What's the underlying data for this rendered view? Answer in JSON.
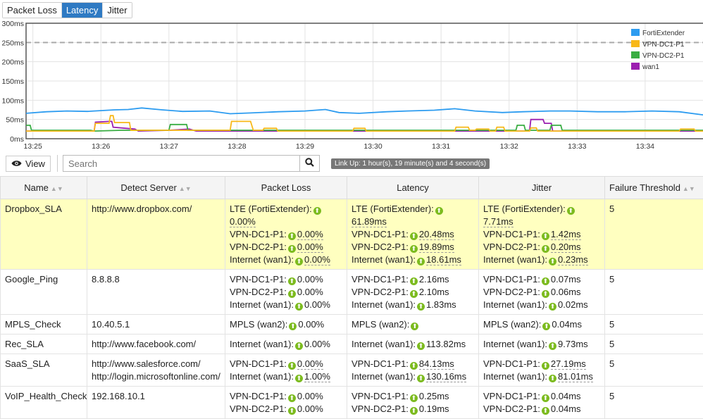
{
  "tabs": [
    {
      "label": "Packet Loss",
      "active": false
    },
    {
      "label": "Latency",
      "active": true
    },
    {
      "label": "Jitter",
      "active": false
    }
  ],
  "chart_data": {
    "type": "line",
    "ylim": [
      0,
      300
    ],
    "yticks": [
      "0ms",
      "50ms",
      "100ms",
      "150ms",
      "200ms",
      "250ms",
      "300ms"
    ],
    "xrange_min": [
      -0.1,
      9.85
    ],
    "xticks": [
      "13:25",
      "13:26",
      "13:27",
      "13:28",
      "13:29",
      "13:30",
      "13:31",
      "13:32",
      "13:33",
      "13:34"
    ],
    "threshold": 250,
    "legend_position": "top-right",
    "series": [
      {
        "name": "FortiExtender",
        "color": "#2d9cf0",
        "points": [
          [
            -0.1,
            66
          ],
          [
            0.2,
            70
          ],
          [
            0.5,
            72
          ],
          [
            0.8,
            71
          ],
          [
            1.2,
            75
          ],
          [
            1.4,
            76
          ],
          [
            1.6,
            80
          ],
          [
            1.9,
            75
          ],
          [
            2.2,
            71
          ],
          [
            2.6,
            72
          ],
          [
            2.9,
            65
          ],
          [
            3.2,
            67
          ],
          [
            3.6,
            70
          ],
          [
            4.0,
            72
          ],
          [
            4.3,
            76
          ],
          [
            4.5,
            68
          ],
          [
            4.8,
            66
          ],
          [
            5.2,
            70
          ],
          [
            5.5,
            72
          ],
          [
            5.9,
            74
          ],
          [
            6.2,
            78
          ],
          [
            6.5,
            72
          ],
          [
            6.9,
            68
          ],
          [
            7.2,
            70
          ],
          [
            7.6,
            72
          ],
          [
            7.9,
            72
          ],
          [
            8.3,
            70
          ],
          [
            8.7,
            70
          ],
          [
            9.1,
            72
          ],
          [
            9.5,
            70
          ],
          [
            9.85,
            62
          ]
        ]
      },
      {
        "name": "VPN-DC1-P1",
        "color": "#f8b818",
        "points": [
          [
            -0.1,
            20
          ],
          [
            0.9,
            20
          ],
          [
            0.92,
            40
          ],
          [
            1.12,
            40
          ],
          [
            1.14,
            60
          ],
          [
            1.18,
            60
          ],
          [
            1.2,
            42
          ],
          [
            1.42,
            42
          ],
          [
            1.44,
            22
          ],
          [
            2.9,
            22
          ],
          [
            2.92,
            45
          ],
          [
            3.2,
            45
          ],
          [
            3.24,
            22
          ],
          [
            3.38,
            22
          ],
          [
            3.4,
            27
          ],
          [
            3.58,
            27
          ],
          [
            3.6,
            20
          ],
          [
            4.7,
            20
          ],
          [
            4.72,
            27
          ],
          [
            4.88,
            27
          ],
          [
            4.9,
            20
          ],
          [
            6.2,
            20
          ],
          [
            6.22,
            30
          ],
          [
            6.4,
            30
          ],
          [
            6.42,
            22
          ],
          [
            6.5,
            22
          ],
          [
            6.52,
            25
          ],
          [
            6.7,
            25
          ],
          [
            6.72,
            20
          ],
          [
            6.8,
            20
          ],
          [
            6.82,
            30
          ],
          [
            6.92,
            30
          ],
          [
            6.94,
            20
          ],
          [
            7.3,
            20
          ],
          [
            7.32,
            28
          ],
          [
            7.4,
            28
          ],
          [
            7.42,
            20
          ],
          [
            9.5,
            20
          ],
          [
            9.52,
            25
          ],
          [
            9.72,
            25
          ],
          [
            9.74,
            20
          ],
          [
            9.85,
            20
          ]
        ]
      },
      {
        "name": "VPN-DC2-P1",
        "color": "#3aad43",
        "points": [
          [
            -0.1,
            35
          ],
          [
            -0.04,
            35
          ],
          [
            -0.02,
            22
          ],
          [
            0.85,
            22
          ],
          [
            0.9,
            20
          ],
          [
            1.3,
            22
          ],
          [
            2.0,
            22
          ],
          [
            2.02,
            37
          ],
          [
            2.26,
            37
          ],
          [
            2.28,
            22
          ],
          [
            7.1,
            22
          ],
          [
            7.12,
            35
          ],
          [
            7.22,
            35
          ],
          [
            7.24,
            22
          ],
          [
            7.6,
            22
          ],
          [
            7.62,
            35
          ],
          [
            7.76,
            35
          ],
          [
            7.78,
            22
          ],
          [
            9.85,
            22
          ]
        ]
      },
      {
        "name": "wan1",
        "color": "#9b1fb0",
        "points": [
          [
            -0.1,
            20
          ],
          [
            0.9,
            20
          ],
          [
            0.92,
            43
          ],
          [
            1.12,
            45
          ],
          [
            1.16,
            45
          ],
          [
            1.18,
            30
          ],
          [
            1.5,
            25
          ],
          [
            1.55,
            20
          ],
          [
            2.0,
            22
          ],
          [
            2.3,
            25
          ],
          [
            2.4,
            20
          ],
          [
            7.3,
            20
          ],
          [
            7.32,
            50
          ],
          [
            7.5,
            50
          ],
          [
            7.52,
            40
          ],
          [
            7.62,
            40
          ],
          [
            7.64,
            20
          ],
          [
            9.85,
            20
          ]
        ]
      }
    ]
  },
  "toolbar": {
    "view_label": "View",
    "search_placeholder": "Search"
  },
  "table": {
    "headers": [
      "Name",
      "Detect Server",
      "Packet Loss",
      "Latency",
      "Jitter",
      "Failure Threshold"
    ],
    "rows": [
      {
        "name": "Dropbox_SLA",
        "server": [
          "http://www.dropbox.com/"
        ],
        "loss": [
          [
            "LTE (FortiExtender):",
            "0.00%"
          ],
          [
            "VPN-DC1-P1:",
            "0.00%"
          ],
          [
            "VPN-DC2-P1:",
            "0.00%"
          ],
          [
            "Internet (wan1):",
            "0.00%"
          ]
        ],
        "latency": [
          [
            "LTE (FortiExtender):",
            "61.89ms"
          ],
          [
            "VPN-DC1-P1:",
            "20.48ms"
          ],
          [
            "VPN-DC2-P1:",
            "19.89ms"
          ],
          [
            "Internet (wan1):",
            "18.61ms"
          ]
        ],
        "jitter": [
          [
            "LTE (FortiExtender):",
            "7.71ms"
          ],
          [
            "VPN-DC1-P1:",
            "1.42ms"
          ],
          [
            "VPN-DC2-P1:",
            "0.20ms"
          ],
          [
            "Internet (wan1):",
            "0.23ms"
          ]
        ],
        "threshold": "5",
        "hl": true,
        "u": true
      },
      {
        "name": "Google_Ping",
        "server": [
          "8.8.8.8"
        ],
        "loss": [
          [
            "VPN-DC1-P1:",
            "0.00%"
          ],
          [
            "VPN-DC2-P1:",
            "0.00%"
          ],
          [
            "Internet (wan1):",
            "0.00%"
          ]
        ],
        "latency": [
          [
            "VPN-DC1-P1:",
            "2.16ms"
          ],
          [
            "VPN-DC2-P1:",
            "2.10ms"
          ],
          [
            "Internet (wan1):",
            "1.83ms"
          ]
        ],
        "jitter": [
          [
            "VPN-DC1-P1:",
            "0.07ms"
          ],
          [
            "VPN-DC2-P1:",
            "0.06ms"
          ],
          [
            "Internet (wan1):",
            "0.02ms"
          ]
        ],
        "threshold": "5"
      },
      {
        "name": "MPLS_Check",
        "server": [
          "10.40.5.1"
        ],
        "loss": [
          [
            "MPLS (wan2):",
            "0.00%"
          ]
        ],
        "latency": [
          [
            "MPLS (wan2):",
            ""
          ]
        ],
        "jitter": [
          [
            "MPLS (wan2):",
            "0.04ms"
          ]
        ],
        "threshold": "5"
      },
      {
        "name": "Rec_SLA",
        "server": [
          "http://www.facebook.com/"
        ],
        "loss": [
          [
            "Internet (wan1):",
            "0.00%"
          ]
        ],
        "latency": [
          [
            "Internet (wan1):",
            "113.82ms"
          ]
        ],
        "jitter": [
          [
            "Internet (wan1):",
            "9.73ms"
          ]
        ],
        "threshold": "5"
      },
      {
        "name": "SaaS_SLA",
        "server": [
          "http://www.salesforce.com/",
          "http://login.microsoftonline.com/"
        ],
        "loss": [
          [
            "VPN-DC1-P1:",
            "0.00%"
          ],
          [
            "Internet (wan1):",
            "1.00%"
          ]
        ],
        "latency": [
          [
            "VPN-DC1-P1:",
            "84.13ms"
          ],
          [
            "Internet (wan1):",
            "130.16ms"
          ]
        ],
        "jitter": [
          [
            "VPN-DC1-P1:",
            "27.19ms"
          ],
          [
            "Internet (wan1):",
            "81.01ms"
          ]
        ],
        "threshold": "5",
        "u": true
      },
      {
        "name": "VoIP_Health_Check",
        "server": [
          "192.168.10.1"
        ],
        "loss": [
          [
            "VPN-DC1-P1:",
            "0.00%"
          ],
          [
            "VPN-DC2-P1:",
            "0.00%"
          ]
        ],
        "latency": [
          [
            "VPN-DC1-P1:",
            "0.25ms"
          ],
          [
            "VPN-DC2-P1:",
            "0.19ms"
          ]
        ],
        "jitter": [
          [
            "VPN-DC1-P1:",
            "0.04ms"
          ],
          [
            "VPN-DC2-P1:",
            "0.04ms"
          ]
        ],
        "threshold": "5"
      }
    ]
  },
  "tooltip": "Link Up: 1 hour(s), 19 minute(s) and 4 second(s)"
}
